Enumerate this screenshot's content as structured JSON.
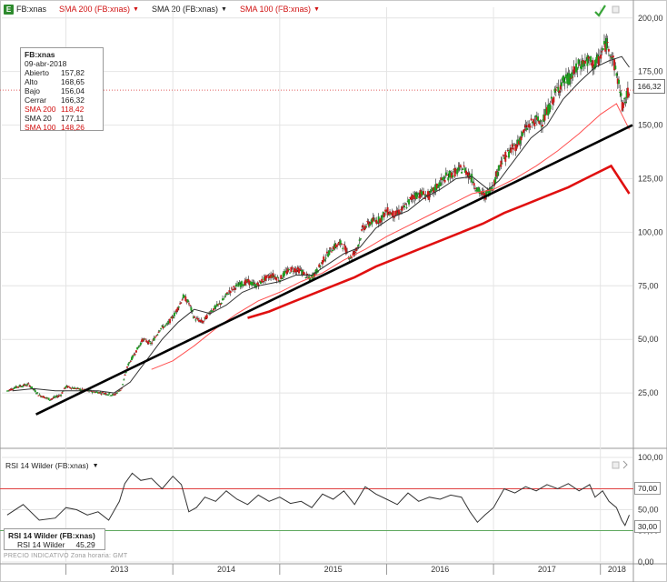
{
  "toolbar": {
    "symbol": "FB:xnas",
    "sma200": "SMA 200 (FB:xnas)",
    "sma20": "SMA 20 (FB:xnas)",
    "sma100": "SMA 100 (FB:xnas)"
  },
  "info": {
    "title": "FB:xnas",
    "date": "09-abr-2018",
    "rows": [
      {
        "k": "Abierto",
        "v": "157,82"
      },
      {
        "k": "Alto",
        "v": "168,65"
      },
      {
        "k": "Bajo",
        "v": "156,04"
      },
      {
        "k": "Cerrar",
        "v": "166,32"
      },
      {
        "k": "SMA 200",
        "v": "118,42"
      },
      {
        "k": "SMA 20",
        "v": "177,11"
      },
      {
        "k": "SMA 100",
        "v": "148,26"
      }
    ]
  },
  "rsi": {
    "title": "RSI 14 Wilder (FB:xnas)",
    "box_title": "RSI 14 Wilder (FB:xnas)",
    "box_label": "RSI 14 Wilder",
    "box_value": "45,29",
    "upper": "70,00",
    "lower": "30,00"
  },
  "footer": "PRECIO INDICATIVO   Zona horaria: GMT",
  "last_price": "166,32",
  "colors": {
    "sma200": "#e01010",
    "sma100": "#ff5050",
    "sma20": "#333333",
    "trendline": "#000000",
    "up": "#1f9e1f",
    "down": "#cc1a1a"
  },
  "chart_data": {
    "type": "line",
    "price_axis": {
      "ticks": [
        "200,00",
        "175,00",
        "150,00",
        "125,00",
        "100,00",
        "75,00",
        "50,00",
        "25,00"
      ],
      "range": [
        0,
        205
      ]
    },
    "rsi_axis": {
      "ticks": [
        "100,00",
        "70,00",
        "50,00",
        "30,00",
        "0,00"
      ],
      "range": [
        0,
        100
      ]
    },
    "x_ticks": [
      "2013",
      "2014",
      "2015",
      "2016",
      "2017",
      "2018"
    ],
    "x_range": [
      2012.4,
      2018.3
    ],
    "price": [
      [
        2012.45,
        26
      ],
      [
        2012.55,
        28
      ],
      [
        2012.65,
        29
      ],
      [
        2012.75,
        24
      ],
      [
        2012.85,
        22
      ],
      [
        2012.95,
        24
      ],
      [
        2013.0,
        28
      ],
      [
        2013.1,
        27
      ],
      [
        2013.2,
        26
      ],
      [
        2013.35,
        25
      ],
      [
        2013.45,
        24
      ],
      [
        2013.52,
        27
      ],
      [
        2013.58,
        38
      ],
      [
        2013.65,
        44
      ],
      [
        2013.72,
        50
      ],
      [
        2013.8,
        48
      ],
      [
        2013.88,
        55
      ],
      [
        2013.95,
        57
      ],
      [
        2014.02,
        62
      ],
      [
        2014.1,
        70
      ],
      [
        2014.15,
        67
      ],
      [
        2014.2,
        60
      ],
      [
        2014.28,
        58
      ],
      [
        2014.35,
        63
      ],
      [
        2014.45,
        67
      ],
      [
        2014.52,
        72
      ],
      [
        2014.6,
        75
      ],
      [
        2014.7,
        77
      ],
      [
        2014.78,
        75
      ],
      [
        2014.85,
        78
      ],
      [
        2014.93,
        80
      ],
      [
        2015.0,
        78
      ],
      [
        2015.05,
        81
      ],
      [
        2015.12,
        83
      ],
      [
        2015.2,
        82
      ],
      [
        2015.28,
        78
      ],
      [
        2015.35,
        82
      ],
      [
        2015.42,
        88
      ],
      [
        2015.5,
        93
      ],
      [
        2015.58,
        95
      ],
      [
        2015.66,
        88
      ],
      [
        2015.72,
        92
      ],
      [
        2015.78,
        102
      ],
      [
        2015.86,
        105
      ],
      [
        2015.94,
        106
      ],
      [
        2016.0,
        110
      ],
      [
        2016.08,
        108
      ],
      [
        2016.16,
        111
      ],
      [
        2016.25,
        117
      ],
      [
        2016.32,
        118
      ],
      [
        2016.4,
        117
      ],
      [
        2016.48,
        122
      ],
      [
        2016.56,
        126
      ],
      [
        2016.64,
        128
      ],
      [
        2016.72,
        130
      ],
      [
        2016.8,
        125
      ],
      [
        2016.86,
        119
      ],
      [
        2016.92,
        117
      ],
      [
        2017.0,
        122
      ],
      [
        2017.06,
        132
      ],
      [
        2017.14,
        137
      ],
      [
        2017.22,
        141
      ],
      [
        2017.3,
        148
      ],
      [
        2017.38,
        152
      ],
      [
        2017.46,
        152
      ],
      [
        2017.52,
        158
      ],
      [
        2017.58,
        165
      ],
      [
        2017.64,
        170
      ],
      [
        2017.72,
        172
      ],
      [
        2017.8,
        178
      ],
      [
        2017.88,
        180
      ],
      [
        2017.95,
        178
      ],
      [
        2018.0,
        182
      ],
      [
        2018.05,
        188
      ],
      [
        2018.08,
        187
      ],
      [
        2018.12,
        180
      ],
      [
        2018.18,
        168
      ],
      [
        2018.21,
        157
      ],
      [
        2018.24,
        163
      ],
      [
        2018.27,
        166
      ]
    ],
    "sma20": [
      [
        2012.5,
        26
      ],
      [
        2012.7,
        27
      ],
      [
        2012.9,
        26
      ],
      [
        2013.1,
        26
      ],
      [
        2013.3,
        26
      ],
      [
        2013.45,
        25
      ],
      [
        2013.6,
        30
      ],
      [
        2013.75,
        40
      ],
      [
        2013.9,
        50
      ],
      [
        2014.05,
        58
      ],
      [
        2014.2,
        64
      ],
      [
        2014.35,
        62
      ],
      [
        2014.5,
        66
      ],
      [
        2014.65,
        72
      ],
      [
        2014.8,
        75
      ],
      [
        2015.0,
        77
      ],
      [
        2015.15,
        80
      ],
      [
        2015.3,
        80
      ],
      [
        2015.45,
        85
      ],
      [
        2015.6,
        90
      ],
      [
        2015.75,
        93
      ],
      [
        2015.9,
        102
      ],
      [
        2016.05,
        107
      ],
      [
        2016.2,
        110
      ],
      [
        2016.35,
        116
      ],
      [
        2016.5,
        120
      ],
      [
        2016.65,
        125
      ],
      [
        2016.8,
        126
      ],
      [
        2016.95,
        120
      ],
      [
        2017.05,
        124
      ],
      [
        2017.2,
        134
      ],
      [
        2017.35,
        144
      ],
      [
        2017.5,
        150
      ],
      [
        2017.65,
        162
      ],
      [
        2017.8,
        170
      ],
      [
        2017.95,
        177
      ],
      [
        2018.08,
        180
      ],
      [
        2018.2,
        182
      ],
      [
        2018.27,
        177
      ]
    ],
    "sma100": [
      [
        2013.8,
        36
      ],
      [
        2014.0,
        40
      ],
      [
        2014.2,
        47
      ],
      [
        2014.4,
        55
      ],
      [
        2014.6,
        62
      ],
      [
        2014.8,
        68
      ],
      [
        2015.0,
        72
      ],
      [
        2015.2,
        77
      ],
      [
        2015.4,
        81
      ],
      [
        2015.6,
        87
      ],
      [
        2015.8,
        92
      ],
      [
        2016.0,
        98
      ],
      [
        2016.2,
        103
      ],
      [
        2016.4,
        108
      ],
      [
        2016.6,
        113
      ],
      [
        2016.8,
        118
      ],
      [
        2017.0,
        120
      ],
      [
        2017.2,
        125
      ],
      [
        2017.4,
        131
      ],
      [
        2017.6,
        138
      ],
      [
        2017.8,
        146
      ],
      [
        2018.0,
        155
      ],
      [
        2018.15,
        160
      ],
      [
        2018.27,
        148
      ]
    ],
    "sma200": [
      [
        2014.7,
        60
      ],
      [
        2014.9,
        63
      ],
      [
        2015.1,
        67
      ],
      [
        2015.3,
        71
      ],
      [
        2015.5,
        75
      ],
      [
        2015.7,
        79
      ],
      [
        2015.9,
        84
      ],
      [
        2016.1,
        88
      ],
      [
        2016.3,
        92
      ],
      [
        2016.5,
        96
      ],
      [
        2016.7,
        100
      ],
      [
        2016.9,
        104
      ],
      [
        2017.1,
        109
      ],
      [
        2017.3,
        113
      ],
      [
        2017.5,
        117
      ],
      [
        2017.7,
        121
      ],
      [
        2017.9,
        126
      ],
      [
        2018.1,
        131
      ],
      [
        2018.27,
        118
      ]
    ],
    "trendline": [
      [
        2012.72,
        15
      ],
      [
        2018.3,
        150
      ]
    ],
    "rsi": [
      [
        2012.45,
        45
      ],
      [
        2012.6,
        55
      ],
      [
        2012.75,
        40
      ],
      [
        2012.9,
        42
      ],
      [
        2013.0,
        52
      ],
      [
        2013.1,
        50
      ],
      [
        2013.2,
        45
      ],
      [
        2013.3,
        48
      ],
      [
        2013.4,
        40
      ],
      [
        2013.5,
        58
      ],
      [
        2013.55,
        75
      ],
      [
        2013.62,
        85
      ],
      [
        2013.7,
        78
      ],
      [
        2013.8,
        80
      ],
      [
        2013.9,
        70
      ],
      [
        2014.0,
        82
      ],
      [
        2014.08,
        74
      ],
      [
        2014.15,
        48
      ],
      [
        2014.22,
        52
      ],
      [
        2014.3,
        62
      ],
      [
        2014.4,
        58
      ],
      [
        2014.5,
        68
      ],
      [
        2014.6,
        60
      ],
      [
        2014.7,
        55
      ],
      [
        2014.8,
        64
      ],
      [
        2014.9,
        58
      ],
      [
        2015.0,
        62
      ],
      [
        2015.1,
        56
      ],
      [
        2015.2,
        58
      ],
      [
        2015.3,
        52
      ],
      [
        2015.4,
        65
      ],
      [
        2015.5,
        60
      ],
      [
        2015.6,
        68
      ],
      [
        2015.7,
        55
      ],
      [
        2015.8,
        72
      ],
      [
        2015.9,
        65
      ],
      [
        2016.0,
        60
      ],
      [
        2016.1,
        55
      ],
      [
        2016.2,
        66
      ],
      [
        2016.3,
        58
      ],
      [
        2016.4,
        62
      ],
      [
        2016.5,
        60
      ],
      [
        2016.6,
        64
      ],
      [
        2016.7,
        62
      ],
      [
        2016.78,
        48
      ],
      [
        2016.85,
        38
      ],
      [
        2016.92,
        45
      ],
      [
        2017.0,
        52
      ],
      [
        2017.1,
        70
      ],
      [
        2017.2,
        66
      ],
      [
        2017.3,
        72
      ],
      [
        2017.4,
        68
      ],
      [
        2017.5,
        74
      ],
      [
        2017.6,
        70
      ],
      [
        2017.7,
        75
      ],
      [
        2017.8,
        68
      ],
      [
        2017.9,
        74
      ],
      [
        2017.95,
        62
      ],
      [
        2018.02,
        68
      ],
      [
        2018.08,
        58
      ],
      [
        2018.15,
        52
      ],
      [
        2018.2,
        40
      ],
      [
        2018.23,
        35
      ],
      [
        2018.27,
        45
      ]
    ]
  }
}
